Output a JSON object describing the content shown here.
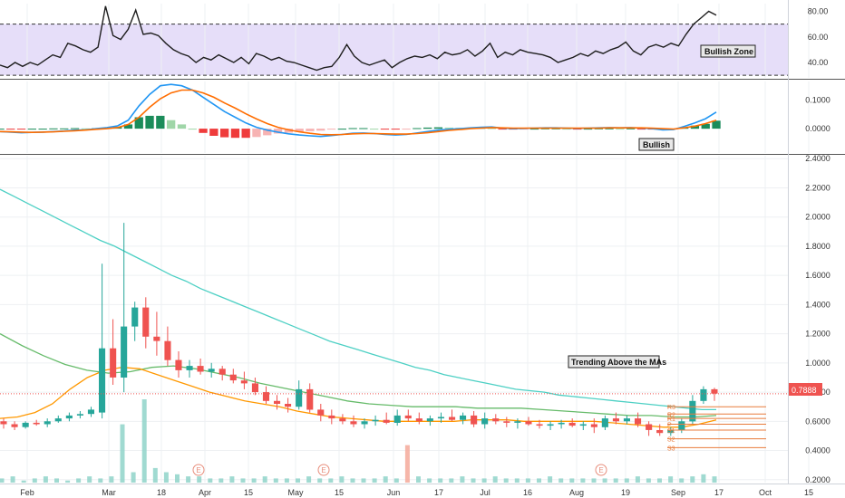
{
  "colors": {
    "up": "#26a69a",
    "down": "#ef5350",
    "candle_up": "#26a69a",
    "candle_down": "#ef5350",
    "rsi_line": "#1e1e1e",
    "rsi_band": "#d6c8f5",
    "macd_line": "#2196f3",
    "signal_line": "#ff6d00",
    "ma_teal": "#4dd0c4",
    "ma_green": "#66bb6a",
    "ma_orange": "#ff9800",
    "price_line": "#ef5350",
    "pivot": "#e87b3c",
    "grid": "#eef0f3",
    "axis_text": "#333333"
  },
  "x_axis": {
    "labels": [
      "Feb",
      "Mar",
      "18",
      "Apr",
      "15",
      "May",
      "15",
      "Jun",
      "17",
      "Jul",
      "16",
      "Aug",
      "19",
      "Sep",
      "17",
      "Oct",
      "15"
    ]
  },
  "annotations": {
    "rsi_label": "Bullish Zone",
    "macd_label": "Bullish",
    "price_label": "Trending Above the MAs",
    "earnings_marker": "E",
    "current_price": "0.7888"
  },
  "pivots": [
    "R3",
    "R2",
    "R1",
    "P",
    "S1",
    "S2",
    "S3"
  ],
  "chart_data": [
    {
      "type": "line",
      "name": "RSI",
      "y_ticks": [
        "80.00",
        "60.00",
        "40.00"
      ],
      "ylim": [
        28,
        86
      ],
      "band": [
        30,
        70
      ],
      "values": [
        38,
        36,
        40,
        37,
        40,
        38,
        42,
        46,
        44,
        55,
        53,
        50,
        48,
        52,
        84,
        61,
        58,
        66,
        81,
        62,
        63,
        61,
        55,
        50,
        47,
        45,
        40,
        44,
        42,
        46,
        43,
        40,
        44,
        39,
        47,
        45,
        42,
        44,
        41,
        40,
        38,
        36,
        34,
        36,
        37,
        44,
        54,
        45,
        40,
        38,
        40,
        42,
        36,
        40,
        43,
        45,
        44,
        46,
        43,
        48,
        46,
        47,
        50,
        45,
        49,
        55,
        44,
        48,
        46,
        50,
        48,
        47,
        46,
        44,
        40,
        42,
        44,
        47,
        45,
        49,
        47,
        50,
        52,
        56,
        49,
        46,
        52,
        54,
        52,
        55,
        53,
        62,
        70,
        75,
        80,
        77
      ]
    },
    {
      "type": "line",
      "name": "MACD",
      "y_ticks": [
        "0.1000",
        "0.0000"
      ],
      "ylim": [
        -0.085,
        0.165
      ],
      "macd": [
        -0.01,
        -0.012,
        -0.014,
        -0.013,
        -0.012,
        -0.01,
        -0.008,
        -0.005,
        -0.004,
        0.0,
        0.004,
        0.01,
        0.03,
        0.08,
        0.12,
        0.15,
        0.155,
        0.15,
        0.135,
        0.11,
        0.085,
        0.06,
        0.04,
        0.02,
        0.005,
        -0.005,
        -0.012,
        -0.018,
        -0.022,
        -0.025,
        -0.027,
        -0.024,
        -0.02,
        -0.016,
        -0.015,
        -0.017,
        -0.02,
        -0.022,
        -0.02,
        -0.015,
        -0.01,
        -0.005,
        -0.002,
        0.0,
        0.003,
        0.005,
        0.006,
        0.002,
        0.0,
        0.001,
        0.002,
        0.003,
        0.003,
        0.002,
        0.001,
        0.002,
        0.003,
        0.004,
        0.003,
        0.004,
        0.002,
        0.0,
        -0.004,
        -0.003,
        0.008,
        0.02,
        0.035,
        0.058
      ],
      "signal": [
        -0.01,
        -0.011,
        -0.012,
        -0.013,
        -0.012,
        -0.011,
        -0.009,
        -0.007,
        -0.005,
        -0.002,
        0.0,
        0.004,
        0.015,
        0.04,
        0.075,
        0.105,
        0.125,
        0.135,
        0.135,
        0.125,
        0.11,
        0.09,
        0.072,
        0.052,
        0.034,
        0.018,
        0.005,
        -0.004,
        -0.011,
        -0.016,
        -0.02,
        -0.021,
        -0.02,
        -0.018,
        -0.017,
        -0.017,
        -0.018,
        -0.019,
        -0.019,
        -0.017,
        -0.014,
        -0.01,
        -0.006,
        -0.003,
        0.0,
        0.002,
        0.004,
        0.003,
        0.002,
        0.002,
        0.002,
        0.002,
        0.002,
        0.002,
        0.002,
        0.002,
        0.002,
        0.003,
        0.003,
        0.003,
        0.003,
        0.002,
        0.0,
        -0.001,
        0.003,
        0.009,
        0.018,
        0.03
      ]
    },
    {
      "type": "candlestick",
      "name": "Price",
      "y_ticks": [
        "2.4000",
        "2.2000",
        "2.0000",
        "1.8000",
        "1.6000",
        "1.4000",
        "1.2000",
        "1.0000",
        "0.8000",
        "0.6000",
        "0.4000",
        "0.2000"
      ],
      "ylim": [
        0.18,
        2.42
      ],
      "ohlc": [
        [
          0.6,
          0.62,
          0.55,
          0.58
        ],
        [
          0.58,
          0.6,
          0.54,
          0.56
        ],
        [
          0.56,
          0.6,
          0.55,
          0.59
        ],
        [
          0.59,
          0.61,
          0.57,
          0.58
        ],
        [
          0.58,
          0.62,
          0.56,
          0.6
        ],
        [
          0.6,
          0.64,
          0.59,
          0.62
        ],
        [
          0.62,
          0.66,
          0.6,
          0.64
        ],
        [
          0.64,
          0.67,
          0.62,
          0.65
        ],
        [
          0.65,
          0.7,
          0.63,
          0.68
        ],
        [
          0.66,
          1.68,
          0.62,
          1.1
        ],
        [
          1.1,
          1.3,
          0.85,
          0.9
        ],
        [
          0.9,
          1.96,
          0.8,
          1.25
        ],
        [
          1.25,
          1.42,
          1.15,
          1.38
        ],
        [
          1.38,
          1.45,
          1.1,
          1.18
        ],
        [
          1.18,
          1.35,
          1.05,
          1.15
        ],
        [
          1.15,
          1.25,
          0.98,
          1.02
        ],
        [
          1.02,
          1.08,
          0.9,
          0.95
        ],
        [
          0.95,
          1.02,
          0.9,
          0.98
        ],
        [
          0.98,
          1.03,
          0.92,
          0.94
        ],
        [
          0.94,
          1.0,
          0.9,
          0.96
        ],
        [
          0.96,
          0.98,
          0.88,
          0.92
        ],
        [
          0.92,
          0.96,
          0.86,
          0.88
        ],
        [
          0.88,
          0.94,
          0.82,
          0.86
        ],
        [
          0.86,
          0.9,
          0.78,
          0.8
        ],
        [
          0.8,
          0.84,
          0.72,
          0.74
        ],
        [
          0.74,
          0.78,
          0.68,
          0.72
        ],
        [
          0.72,
          0.76,
          0.66,
          0.7
        ],
        [
          0.7,
          0.88,
          0.68,
          0.82
        ],
        [
          0.82,
          0.86,
          0.66,
          0.68
        ],
        [
          0.68,
          0.72,
          0.6,
          0.64
        ],
        [
          0.64,
          0.68,
          0.58,
          0.62
        ],
        [
          0.62,
          0.65,
          0.58,
          0.6
        ],
        [
          0.6,
          0.64,
          0.56,
          0.58
        ],
        [
          0.58,
          0.62,
          0.55,
          0.6
        ],
        [
          0.6,
          0.64,
          0.57,
          0.61
        ],
        [
          0.61,
          0.66,
          0.58,
          0.59
        ],
        [
          0.59,
          0.68,
          0.57,
          0.64
        ],
        [
          0.64,
          0.68,
          0.6,
          0.62
        ],
        [
          0.62,
          0.66,
          0.58,
          0.6
        ],
        [
          0.6,
          0.64,
          0.57,
          0.62
        ],
        [
          0.62,
          0.66,
          0.59,
          0.63
        ],
        [
          0.63,
          0.68,
          0.6,
          0.61
        ],
        [
          0.61,
          0.66,
          0.58,
          0.64
        ],
        [
          0.64,
          0.67,
          0.56,
          0.58
        ],
        [
          0.58,
          0.66,
          0.55,
          0.62
        ],
        [
          0.62,
          0.65,
          0.58,
          0.6
        ],
        [
          0.6,
          0.63,
          0.56,
          0.59
        ],
        [
          0.59,
          0.62,
          0.55,
          0.6
        ],
        [
          0.6,
          0.63,
          0.57,
          0.58
        ],
        [
          0.58,
          0.61,
          0.55,
          0.57
        ],
        [
          0.57,
          0.6,
          0.54,
          0.58
        ],
        [
          0.58,
          0.61,
          0.55,
          0.59
        ],
        [
          0.59,
          0.62,
          0.56,
          0.57
        ],
        [
          0.57,
          0.6,
          0.54,
          0.58
        ],
        [
          0.58,
          0.62,
          0.52,
          0.56
        ],
        [
          0.56,
          0.64,
          0.54,
          0.62
        ],
        [
          0.62,
          0.66,
          0.58,
          0.6
        ],
        [
          0.6,
          0.64,
          0.58,
          0.62
        ],
        [
          0.62,
          0.66,
          0.56,
          0.58
        ],
        [
          0.58,
          0.6,
          0.5,
          0.54
        ],
        [
          0.54,
          0.58,
          0.5,
          0.52
        ],
        [
          0.52,
          0.56,
          0.5,
          0.54
        ],
        [
          0.54,
          0.62,
          0.52,
          0.6
        ],
        [
          0.6,
          0.78,
          0.58,
          0.74
        ],
        [
          0.74,
          0.84,
          0.72,
          0.82
        ],
        [
          0.82,
          0.83,
          0.74,
          0.79
        ]
      ],
      "ma_teal": [
        2.19,
        2.14,
        2.09,
        2.04,
        1.99,
        1.94,
        1.89,
        1.84,
        1.8,
        1.75,
        1.7,
        1.65,
        1.6,
        1.56,
        1.51,
        1.47,
        1.43,
        1.39,
        1.35,
        1.31,
        1.27,
        1.23,
        1.19,
        1.15,
        1.12,
        1.09,
        1.06,
        1.03,
        1.0,
        0.97,
        0.95,
        0.92,
        0.9,
        0.88,
        0.86,
        0.84,
        0.82,
        0.81,
        0.8,
        0.78,
        0.77,
        0.76,
        0.75,
        0.74,
        0.73,
        0.72,
        0.71,
        0.7,
        0.69,
        0.68,
        0.68
      ],
      "ma_green": [
        1.2,
        1.12,
        1.05,
        0.99,
        0.95,
        0.93,
        0.94,
        0.97,
        0.98,
        0.96,
        0.93,
        0.9,
        0.86,
        0.83,
        0.8,
        0.77,
        0.74,
        0.72,
        0.71,
        0.7,
        0.7,
        0.7,
        0.69,
        0.69,
        0.69,
        0.68,
        0.67,
        0.66,
        0.65,
        0.64,
        0.64,
        0.63,
        0.63,
        0.64
      ],
      "ma_orange": [
        0.62,
        0.63,
        0.66,
        0.72,
        0.82,
        0.9,
        0.95,
        0.97,
        0.96,
        0.92,
        0.88,
        0.84,
        0.8,
        0.77,
        0.74,
        0.72,
        0.7,
        0.67,
        0.65,
        0.63,
        0.62,
        0.61,
        0.6,
        0.6,
        0.6,
        0.6,
        0.6,
        0.61,
        0.61,
        0.61,
        0.6,
        0.6,
        0.6,
        0.6,
        0.6,
        0.59,
        0.58,
        0.57,
        0.56,
        0.56,
        0.58,
        0.61
      ],
      "volume": [
        2,
        3,
        1,
        2,
        3,
        2,
        1,
        2,
        3,
        2,
        3,
        28,
        5,
        40,
        7,
        5,
        4,
        3,
        3,
        2,
        2,
        3,
        2,
        2,
        3,
        2,
        2,
        2,
        3,
        2,
        2,
        3,
        2,
        2,
        2,
        3,
        2,
        18,
        3,
        2,
        2,
        2,
        3,
        2,
        2,
        3,
        2,
        2,
        2,
        2,
        3,
        2,
        2,
        2,
        2,
        2,
        2,
        2,
        3,
        2,
        2,
        3,
        2,
        3,
        4,
        3
      ]
    }
  ]
}
